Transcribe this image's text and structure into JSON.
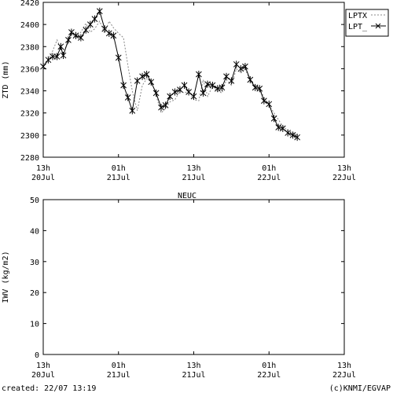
{
  "header_title": "NEUC",
  "footer": {
    "created": "created: 22/07 13:19",
    "credit": "(c)KNMI/EGVAP"
  },
  "chart_data": [
    {
      "type": "line",
      "ylabel": "ZTD (mm)",
      "ylim": [
        2280,
        2420
      ],
      "yticks": [
        2280,
        2300,
        2320,
        2340,
        2360,
        2380,
        2400,
        2420
      ],
      "xlim": [
        0,
        48
      ],
      "xticks": [
        {
          "x": 0,
          "line1": "13h",
          "line2": "20Jul"
        },
        {
          "x": 12,
          "line1": "01h",
          "line2": "21Jul"
        },
        {
          "x": 24,
          "line1": "13h",
          "line2": "21Jul"
        },
        {
          "x": 36,
          "line1": "01h",
          "line2": "22Jul"
        },
        {
          "x": 48,
          "line1": "13h",
          "line2": "22Jul"
        }
      ],
      "x_unit": "hours since 13h 20Jul",
      "legend_position": "top-right",
      "series": [
        {
          "name": "LPTX",
          "style": "dotted",
          "color": "#888888",
          "points": [
            [
              0.0,
              2364
            ],
            [
              0.8,
              2368
            ],
            [
              1.5,
              2376
            ],
            [
              2.2,
              2386
            ],
            [
              3.0,
              2375
            ],
            [
              3.8,
              2381
            ],
            [
              4.5,
              2392
            ],
            [
              5.2,
              2388
            ],
            [
              6.0,
              2393
            ],
            [
              6.8,
              2401
            ],
            [
              7.5,
              2393
            ],
            [
              8.2,
              2396
            ],
            [
              9.0,
              2403
            ],
            [
              9.8,
              2392
            ],
            [
              10.5,
              2403
            ],
            [
              11.2,
              2397
            ],
            [
              12.0,
              2392
            ],
            [
              12.8,
              2388
            ],
            [
              13.5,
              2363
            ],
            [
              14.2,
              2340
            ],
            [
              15.0,
              2322
            ],
            [
              15.8,
              2345
            ],
            [
              16.5,
              2351
            ],
            [
              17.2,
              2350
            ],
            [
              18.0,
              2336
            ],
            [
              18.8,
              2320
            ],
            [
              19.5,
              2324
            ],
            [
              20.2,
              2330
            ],
            [
              21.0,
              2332
            ],
            [
              21.8,
              2340
            ],
            [
              22.5,
              2338
            ],
            [
              23.2,
              2340
            ],
            [
              24.0,
              2332
            ],
            [
              24.8,
              2331
            ],
            [
              25.5,
              2350
            ],
            [
              26.2,
              2335
            ],
            [
              27.0,
              2344
            ],
            [
              27.8,
              2340
            ],
            [
              28.5,
              2338
            ],
            [
              29.2,
              2350
            ],
            [
              30.0,
              2345
            ],
            [
              30.8,
              2360
            ],
            [
              31.5,
              2356
            ],
            [
              32.2,
              2360
            ],
            [
              33.0,
              2349
            ],
            [
              33.8,
              2345
            ],
            [
              34.5,
              2342
            ],
            [
              35.2,
              2334
            ],
            [
              36.0,
              2327
            ],
            [
              36.8,
              2320
            ],
            [
              37.5,
              2314
            ],
            [
              38.2,
              2308
            ],
            [
              39.0,
              2304
            ],
            [
              39.8,
              2302
            ],
            [
              40.5,
              2300
            ]
          ]
        },
        {
          "name": "LPT_",
          "style": "solid-star",
          "color": "#000000",
          "points": [
            [
              0.0,
              2362
            ],
            [
              0.8,
              2368
            ],
            [
              1.5,
              2371
            ],
            [
              2.2,
              2371
            ],
            [
              2.8,
              2380
            ],
            [
              3.2,
              2372
            ],
            [
              4.0,
              2386
            ],
            [
              4.5,
              2393
            ],
            [
              5.2,
              2390
            ],
            [
              6.0,
              2388
            ],
            [
              6.8,
              2395
            ],
            [
              7.5,
              2400
            ],
            [
              8.2,
              2405
            ],
            [
              9.0,
              2412
            ],
            [
              9.8,
              2396
            ],
            [
              10.5,
              2392
            ],
            [
              11.2,
              2390
            ],
            [
              12.0,
              2370
            ],
            [
              12.8,
              2345
            ],
            [
              13.5,
              2334
            ],
            [
              14.2,
              2322
            ],
            [
              15.0,
              2349
            ],
            [
              15.8,
              2353
            ],
            [
              16.5,
              2355
            ],
            [
              17.2,
              2348
            ],
            [
              18.0,
              2338
            ],
            [
              18.8,
              2325
            ],
            [
              19.5,
              2327
            ],
            [
              20.2,
              2335
            ],
            [
              21.0,
              2339
            ],
            [
              21.8,
              2341
            ],
            [
              22.5,
              2345
            ],
            [
              23.2,
              2339
            ],
            [
              24.0,
              2335
            ],
            [
              24.8,
              2355
            ],
            [
              25.5,
              2338
            ],
            [
              26.2,
              2346
            ],
            [
              27.0,
              2345
            ],
            [
              27.8,
              2342
            ],
            [
              28.5,
              2343
            ],
            [
              29.2,
              2353
            ],
            [
              30.0,
              2349
            ],
            [
              30.8,
              2364
            ],
            [
              31.5,
              2360
            ],
            [
              32.2,
              2362
            ],
            [
              33.0,
              2350
            ],
            [
              33.8,
              2343
            ],
            [
              34.5,
              2342
            ],
            [
              35.2,
              2331
            ],
            [
              36.0,
              2328
            ],
            [
              36.8,
              2315
            ],
            [
              37.5,
              2307
            ],
            [
              38.2,
              2306
            ],
            [
              39.0,
              2302
            ],
            [
              39.8,
              2300
            ],
            [
              40.5,
              2298
            ]
          ]
        }
      ]
    },
    {
      "type": "line",
      "ylabel": "IWV (kg/m2)",
      "ylim": [
        0,
        50
      ],
      "yticks": [
        0,
        10,
        20,
        30,
        40,
        50
      ],
      "xlim": [
        0,
        48
      ],
      "xticks": [
        {
          "x": 0,
          "line1": "13h",
          "line2": "20Jul"
        },
        {
          "x": 12,
          "line1": "01h",
          "line2": "21Jul"
        },
        {
          "x": 24,
          "line1": "13h",
          "line2": "21Jul"
        },
        {
          "x": 36,
          "line1": "01h",
          "line2": "22Jul"
        },
        {
          "x": 48,
          "line1": "13h",
          "line2": "22Jul"
        }
      ],
      "series": []
    }
  ]
}
